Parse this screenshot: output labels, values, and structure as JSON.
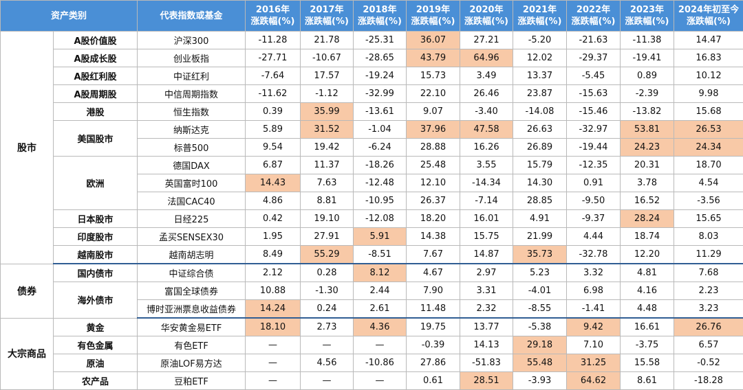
{
  "header": {
    "asset_class": "资产类别",
    "index_fund": "代表指数或基金",
    "years": [
      "2016年",
      "2017年",
      "2018年",
      "2019年",
      "2020年",
      "2021年",
      "2022年",
      "2023年",
      "2024年初至今"
    ],
    "change_label": "涨跌幅(%)"
  },
  "categories": {
    "stocks": "股市",
    "bonds": "债券",
    "commodities": "大宗商品"
  },
  "highlight_color": "#f8c9a7",
  "header_color": "#4a8fd6",
  "rows": [
    {
      "cat": "stocks",
      "sub": "A股价值股",
      "index": "沪深300",
      "values": [
        "-11.28",
        "21.78",
        "-25.31",
        "36.07",
        "27.21",
        "-5.20",
        "-21.63",
        "-11.38",
        "14.47"
      ],
      "highlights": [
        3
      ]
    },
    {
      "cat": "stocks",
      "sub": "A股成长股",
      "index": "创业板指",
      "values": [
        "-27.71",
        "-10.67",
        "-28.65",
        "43.79",
        "64.96",
        "12.02",
        "-29.37",
        "-19.41",
        "16.83"
      ],
      "highlights": [
        3,
        4
      ]
    },
    {
      "cat": "stocks",
      "sub": "A股红利股",
      "index": "中证红利",
      "values": [
        "-7.64",
        "17.57",
        "-19.24",
        "15.73",
        "3.49",
        "13.37",
        "-5.45",
        "0.89",
        "10.12"
      ],
      "highlights": []
    },
    {
      "cat": "stocks",
      "sub": "A股周期股",
      "index": "中信周期指数",
      "values": [
        "-11.62",
        "-1.12",
        "-32.99",
        "22.10",
        "26.46",
        "23.87",
        "-15.63",
        "-2.39",
        "9.98"
      ],
      "highlights": []
    },
    {
      "cat": "stocks",
      "sub": "港股",
      "index": "恒生指数",
      "values": [
        "0.39",
        "35.99",
        "-13.61",
        "9.07",
        "-3.40",
        "-14.08",
        "-15.46",
        "-13.82",
        "15.68"
      ],
      "highlights": [
        1
      ]
    },
    {
      "cat": "stocks",
      "sub": "美国股市",
      "index": "纳斯达克",
      "values": [
        "5.89",
        "31.52",
        "-1.04",
        "37.96",
        "47.58",
        "26.63",
        "-32.97",
        "53.81",
        "26.53"
      ],
      "highlights": [
        1,
        3,
        4,
        7,
        8
      ]
    },
    {
      "cat": "stocks",
      "sub": "美国股市",
      "index": "标普500",
      "values": [
        "9.54",
        "19.42",
        "-6.24",
        "28.88",
        "16.26",
        "26.89",
        "-19.44",
        "24.23",
        "24.34"
      ],
      "highlights": [
        7,
        8
      ]
    },
    {
      "cat": "stocks",
      "sub": "欧洲",
      "index": "德国DAX",
      "values": [
        "6.87",
        "11.37",
        "-18.26",
        "25.48",
        "3.55",
        "15.79",
        "-12.35",
        "20.31",
        "18.70"
      ],
      "highlights": []
    },
    {
      "cat": "stocks",
      "sub": "欧洲",
      "index": "英国富时100",
      "values": [
        "14.43",
        "7.63",
        "-12.48",
        "12.10",
        "-14.34",
        "14.30",
        "0.91",
        "3.78",
        "4.54"
      ],
      "highlights": [
        0
      ]
    },
    {
      "cat": "stocks",
      "sub": "欧洲",
      "index": "法国CAC40",
      "values": [
        "4.86",
        "8.81",
        "-10.95",
        "26.37",
        "-7.14",
        "28.85",
        "-9.50",
        "16.52",
        "-3.56"
      ],
      "highlights": []
    },
    {
      "cat": "stocks",
      "sub": "日本股市",
      "index": "日经225",
      "values": [
        "0.42",
        "19.10",
        "-12.08",
        "18.20",
        "16.01",
        "4.91",
        "-9.37",
        "28.24",
        "15.65"
      ],
      "highlights": [
        7
      ]
    },
    {
      "cat": "stocks",
      "sub": "印度股市",
      "index": "孟买SENSEX30",
      "values": [
        "1.95",
        "27.91",
        "5.91",
        "14.38",
        "15.75",
        "21.99",
        "4.44",
        "18.74",
        "8.03"
      ],
      "highlights": [
        2
      ]
    },
    {
      "cat": "stocks",
      "sub": "越南股市",
      "index": "越南胡志明",
      "values": [
        "8.49",
        "55.29",
        "-8.51",
        "7.67",
        "14.87",
        "35.73",
        "-32.78",
        "12.20",
        "11.29"
      ],
      "highlights": [
        1,
        5
      ]
    },
    {
      "cat": "bonds",
      "sub": "国内债市",
      "index": "中证综合债",
      "values": [
        "2.12",
        "0.28",
        "8.12",
        "4.67",
        "2.97",
        "5.23",
        "3.32",
        "4.81",
        "7.68"
      ],
      "highlights": [
        2
      ]
    },
    {
      "cat": "bonds",
      "sub": "海外债市",
      "index": "富国全球债券",
      "values": [
        "10.88",
        "-1.30",
        "2.44",
        "7.90",
        "3.31",
        "-4.01",
        "6.98",
        "4.16",
        "2.23"
      ],
      "highlights": []
    },
    {
      "cat": "bonds",
      "sub": "海外债市",
      "index": "博时亚洲票息收益债券",
      "values": [
        "14.24",
        "0.24",
        "2.61",
        "11.48",
        "2.32",
        "-8.55",
        "-1.41",
        "4.48",
        "3.23"
      ],
      "highlights": [
        0
      ]
    },
    {
      "cat": "commodities",
      "sub": "黄金",
      "index": "华安黄金易ETF",
      "values": [
        "18.10",
        "2.73",
        "4.36",
        "19.75",
        "13.77",
        "-5.38",
        "9.42",
        "16.61",
        "26.76"
      ],
      "highlights": [
        0,
        2,
        6,
        8
      ]
    },
    {
      "cat": "commodities",
      "sub": "有色金属",
      "index": "有色ETF",
      "values": [
        "—",
        "—",
        "—",
        "-0.39",
        "14.13",
        "29.18",
        "7.10",
        "-3.75",
        "6.57"
      ],
      "highlights": [
        5
      ]
    },
    {
      "cat": "commodities",
      "sub": "原油",
      "index": "原油LOF易方达",
      "values": [
        "—",
        "4.56",
        "-10.86",
        "27.86",
        "-51.83",
        "55.48",
        "31.25",
        "15.58",
        "-0.52"
      ],
      "highlights": [
        5,
        6
      ]
    },
    {
      "cat": "commodities",
      "sub": "农产品",
      "index": "豆粕ETF",
      "values": [
        "—",
        "—",
        "—",
        "0.61",
        "28.51",
        "-3.93",
        "64.62",
        "8.61",
        "-18.28"
      ],
      "highlights": [
        4,
        6
      ]
    }
  ]
}
